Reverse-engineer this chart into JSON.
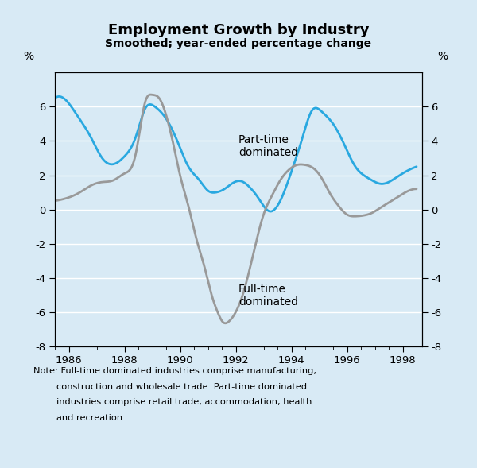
{
  "title": "Employment Growth by Industry",
  "subtitle": "Smoothed; year-ended percentage change",
  "ylabel_left": "%",
  "ylabel_right": "%",
  "xlim": [
    1985.5,
    1998.7
  ],
  "ylim": [
    -8,
    8
  ],
  "yticks": [
    -8,
    -6,
    -4,
    -2,
    0,
    2,
    4,
    6
  ],
  "xticks": [
    1986,
    1988,
    1990,
    1992,
    1994,
    1996,
    1998
  ],
  "background_color": "#d8eaf5",
  "plot_bg_color": "#d8eaf5",
  "part_time_color": "#29a8e0",
  "full_time_color": "#999999",
  "part_time_label": "Part-time\ndominated",
  "full_time_label": "Full-time\ndominated",
  "note_line1": "Note: Full-time dominated industries comprise manufacturing,",
  "note_line2": "        construction and wholesale trade. Part-time dominated",
  "note_line3": "        industries comprise retail trade, accommodation, health",
  "note_line4": "        and recreation.",
  "part_time_x": [
    1985.5,
    1986.0,
    1986.3,
    1986.8,
    1987.2,
    1987.7,
    1988.0,
    1988.4,
    1988.75,
    1989.1,
    1989.5,
    1989.9,
    1990.3,
    1990.7,
    1991.0,
    1991.3,
    1991.6,
    1991.9,
    1992.2,
    1992.5,
    1992.8,
    1993.2,
    1993.6,
    1994.0,
    1994.4,
    1994.75,
    1995.1,
    1995.5,
    1995.9,
    1996.3,
    1996.6,
    1996.9,
    1997.2,
    1997.5,
    1997.8,
    1998.1,
    1998.5
  ],
  "part_time_y": [
    6.5,
    6.2,
    5.5,
    4.2,
    3.0,
    2.7,
    3.1,
    4.2,
    5.9,
    6.0,
    5.3,
    4.0,
    2.5,
    1.7,
    1.1,
    1.0,
    1.2,
    1.55,
    1.65,
    1.3,
    0.7,
    -0.1,
    0.5,
    2.2,
    4.2,
    5.8,
    5.7,
    5.0,
    3.8,
    2.5,
    2.0,
    1.7,
    1.5,
    1.6,
    1.9,
    2.2,
    2.5
  ],
  "full_time_x": [
    1985.5,
    1986.0,
    1986.4,
    1986.8,
    1987.2,
    1987.6,
    1988.0,
    1988.4,
    1988.75,
    1989.0,
    1989.25,
    1989.5,
    1989.8,
    1990.0,
    1990.3,
    1990.6,
    1990.9,
    1991.1,
    1991.35,
    1991.55,
    1991.75,
    1992.0,
    1992.25,
    1992.5,
    1992.75,
    1993.0,
    1993.3,
    1993.6,
    1993.9,
    1994.2,
    1994.5,
    1994.8,
    1995.1,
    1995.4,
    1995.7,
    1996.0,
    1996.3,
    1996.6,
    1996.9,
    1997.2,
    1997.5,
    1997.8,
    1998.1,
    1998.5
  ],
  "full_time_y": [
    0.5,
    0.7,
    1.0,
    1.4,
    1.6,
    1.7,
    2.1,
    3.2,
    6.3,
    6.7,
    6.5,
    5.5,
    3.5,
    2.0,
    0.2,
    -1.8,
    -3.5,
    -4.8,
    -6.0,
    -6.6,
    -6.55,
    -6.0,
    -5.0,
    -3.5,
    -1.8,
    -0.3,
    0.8,
    1.7,
    2.3,
    2.6,
    2.6,
    2.4,
    1.8,
    0.9,
    0.2,
    -0.3,
    -0.4,
    -0.35,
    -0.2,
    0.1,
    0.4,
    0.7,
    1.0,
    1.2
  ]
}
